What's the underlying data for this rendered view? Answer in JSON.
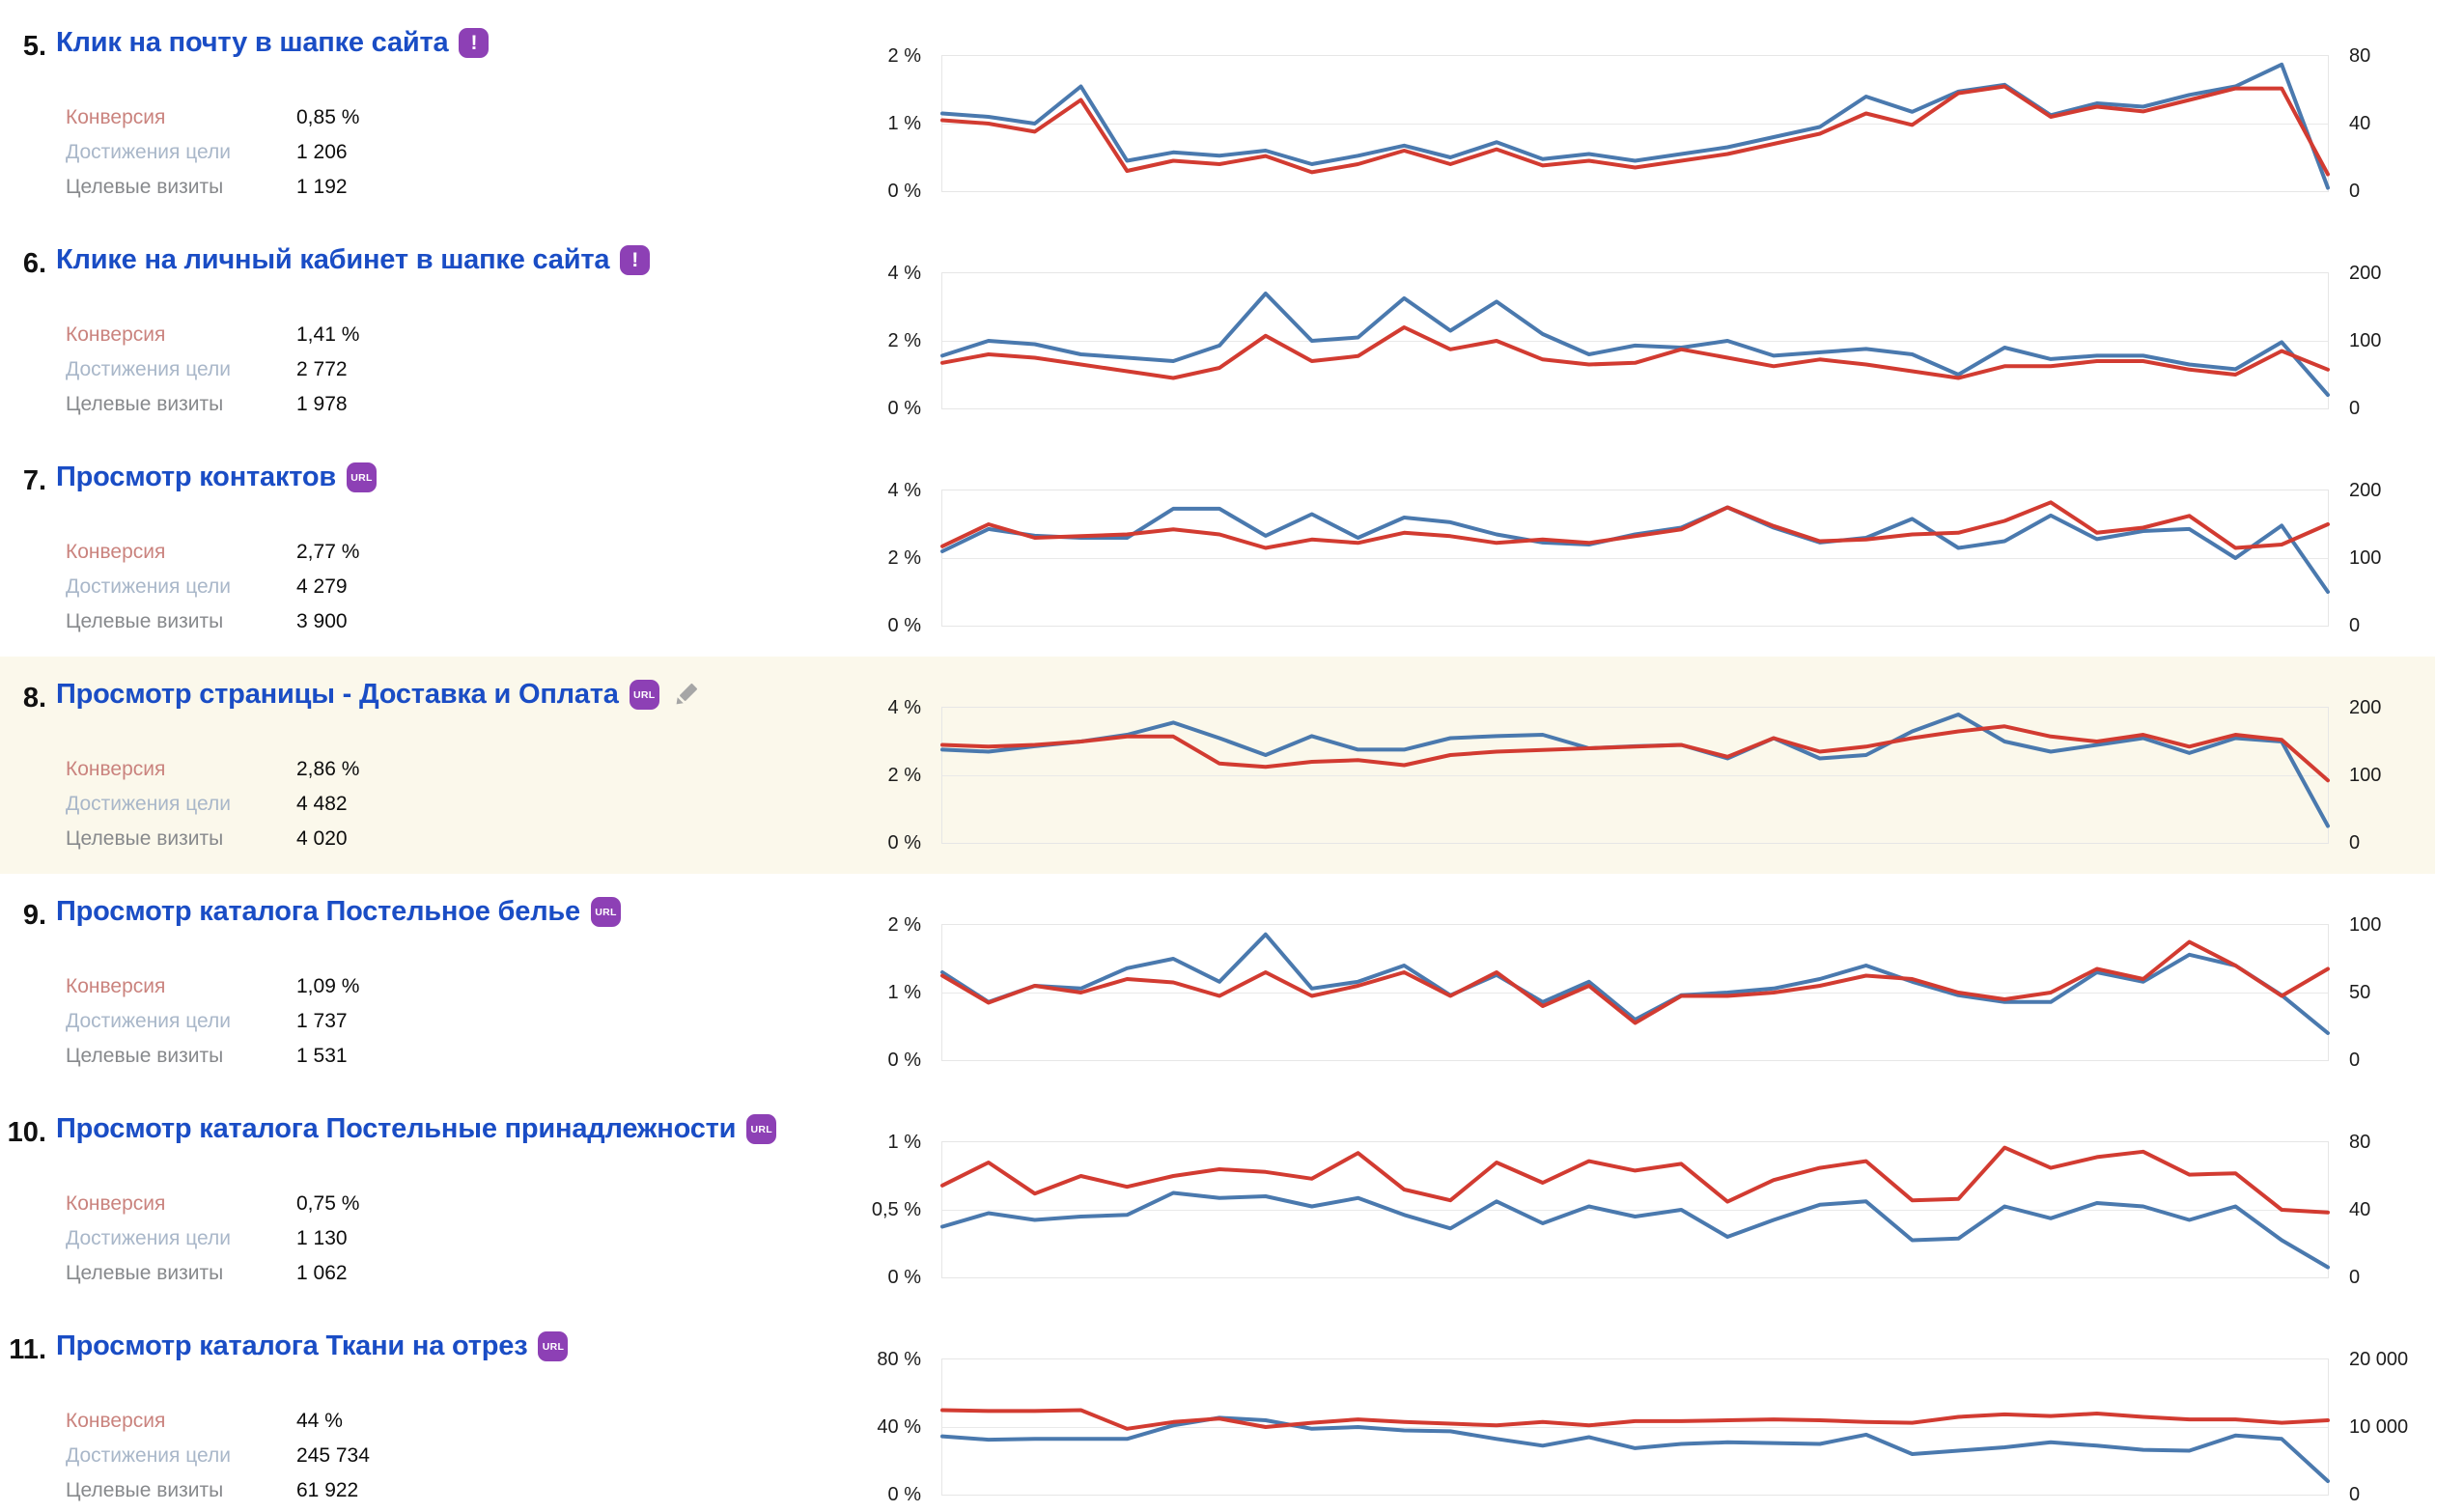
{
  "colors": {
    "title_link": "#1a4dc5",
    "conversion_label": "#ca837e",
    "reaches_label": "#a9b7c9",
    "visits_label": "#87898c",
    "value_text": "#0d0d0d",
    "badge_bg": "#8d40b5",
    "edit_icon": "#a6a6a6",
    "blue_line": "#4a79ae",
    "red_line": "#d23b31",
    "grid": "#e9e9e9",
    "highlight_bg": "#fbf8eb"
  },
  "stat_labels": {
    "conversion": "Конверсия",
    "goal_reaches": "Достижения цели",
    "goal_visits": "Целевые визиты"
  },
  "goals": [
    {
      "number": "5.",
      "title": "Клик на почту в шапке сайта",
      "badge_label": "!",
      "badge_type": "exclamation",
      "conversion": "0,85 %",
      "goal_reaches": "1 206",
      "goal_visits": "1 192",
      "highlighted": false
    },
    {
      "number": "6.",
      "title": "Клике на личный кабинет в шапке сайта",
      "badge_label": "!",
      "badge_type": "exclamation",
      "conversion": "1,41 %",
      "goal_reaches": "2 772",
      "goal_visits": "1 978",
      "highlighted": false
    },
    {
      "number": "7.",
      "title": "Просмотр контактов",
      "badge_label": "URL",
      "badge_type": "url",
      "conversion": "2,77 %",
      "goal_reaches": "4 279",
      "goal_visits": "3 900",
      "highlighted": false
    },
    {
      "number": "8.",
      "title": "Просмотр страницы - Доставка и Оплата",
      "badge_label": "URL",
      "badge_type": "url",
      "conversion": "2,86 %",
      "goal_reaches": "4 482",
      "goal_visits": "4 020",
      "highlighted": true,
      "has_edit_icon": true
    },
    {
      "number": "9.",
      "title": "Просмотр каталога Постельное белье",
      "badge_label": "URL",
      "badge_type": "url",
      "conversion": "1,09 %",
      "goal_reaches": "1 737",
      "goal_visits": "1 531",
      "highlighted": false
    },
    {
      "number": "10.",
      "title": "Просмотр каталога Постельные принадлежности",
      "badge_label": "URL",
      "badge_type": "url",
      "conversion": "0,75 %",
      "goal_reaches": "1 130",
      "goal_visits": "1 062",
      "highlighted": false
    },
    {
      "number": "11.",
      "title": "Просмотр каталога Ткани на отрез",
      "badge_label": "URL",
      "badge_type": "url",
      "conversion": "44 %",
      "goal_reaches": "245 734",
      "goal_visits": "61 922",
      "highlighted": false
    }
  ],
  "chart_data": [
    {
      "type": "line",
      "title": "Клик на почту в шапке сайта",
      "x": "days of period (31 points, x labels not shown)",
      "grid": "horizontal",
      "left_axis": {
        "max": 2,
        "ticks": [
          "2 %",
          "1 %",
          "0 %"
        ]
      },
      "right_axis": {
        "max": 80,
        "ticks": [
          "80",
          "40",
          "0"
        ]
      },
      "series": [
        {
          "name": "Достижения цели",
          "color": "blue",
          "axis": "right",
          "values": [
            46,
            44,
            40,
            62,
            18,
            23,
            21,
            24,
            16,
            21,
            27,
            20,
            29,
            19,
            22,
            18,
            22,
            26,
            32,
            38,
            56,
            47,
            59,
            63,
            45,
            52,
            50,
            57,
            62,
            75,
            2
          ]
        },
        {
          "name": "Конверсия",
          "color": "red",
          "axis": "left",
          "values": [
            1.05,
            1.0,
            0.88,
            1.35,
            0.3,
            0.45,
            0.4,
            0.52,
            0.28,
            0.4,
            0.6,
            0.4,
            0.62,
            0.38,
            0.45,
            0.35,
            0.45,
            0.55,
            0.7,
            0.85,
            1.15,
            0.98,
            1.45,
            1.55,
            1.1,
            1.25,
            1.18,
            1.35,
            1.52,
            1.52,
            0.25
          ]
        }
      ]
    },
    {
      "type": "line",
      "title": "Клике на личный кабинет в шапке сайта",
      "x": "days of period (31 points, x labels not shown)",
      "grid": "horizontal",
      "left_axis": {
        "max": 4,
        "ticks": [
          "4 %",
          "2 %",
          "0 %"
        ]
      },
      "right_axis": {
        "max": 200,
        "ticks": [
          "200",
          "100",
          "0"
        ]
      },
      "series": [
        {
          "name": "Достижения цели",
          "color": "blue",
          "axis": "right",
          "values": [
            78,
            100,
            95,
            80,
            75,
            70,
            93,
            170,
            100,
            105,
            163,
            115,
            158,
            110,
            80,
            93,
            90,
            100,
            78,
            83,
            88,
            80,
            50,
            90,
            73,
            78,
            78,
            65,
            58,
            98,
            20
          ]
        },
        {
          "name": "Конверсия",
          "color": "red",
          "axis": "left",
          "values": [
            1.35,
            1.6,
            1.5,
            1.3,
            1.1,
            0.9,
            1.2,
            2.15,
            1.4,
            1.55,
            2.4,
            1.75,
            2.0,
            1.45,
            1.3,
            1.35,
            1.75,
            1.5,
            1.25,
            1.45,
            1.3,
            1.1,
            0.9,
            1.25,
            1.25,
            1.4,
            1.4,
            1.15,
            1.0,
            1.7,
            1.15
          ]
        }
      ]
    },
    {
      "type": "line",
      "title": "Просмотр контактов",
      "x": "days of period (31 points, x labels not shown)",
      "grid": "horizontal",
      "left_axis": {
        "max": 4,
        "ticks": [
          "4 %",
          "2 %",
          "0 %"
        ]
      },
      "right_axis": {
        "max": 200,
        "ticks": [
          "200",
          "100",
          "0"
        ]
      },
      "series": [
        {
          "name": "Достижения цели",
          "color": "blue",
          "axis": "right",
          "values": [
            110,
            143,
            133,
            130,
            130,
            173,
            173,
            133,
            165,
            130,
            160,
            153,
            135,
            123,
            120,
            135,
            145,
            175,
            145,
            123,
            130,
            158,
            115,
            125,
            163,
            128,
            140,
            143,
            100,
            148,
            50
          ]
        },
        {
          "name": "Конверсия",
          "color": "red",
          "axis": "left",
          "values": [
            2.35,
            3.0,
            2.6,
            2.65,
            2.7,
            2.85,
            2.7,
            2.3,
            2.55,
            2.45,
            2.75,
            2.65,
            2.45,
            2.55,
            2.45,
            2.65,
            2.85,
            3.5,
            2.95,
            2.5,
            2.55,
            2.7,
            2.75,
            3.1,
            3.65,
            2.75,
            2.9,
            3.25,
            2.3,
            2.4,
            3.0
          ]
        }
      ]
    },
    {
      "type": "line",
      "title": "Просмотр страницы - Доставка и Оплата",
      "x": "days of period (31 points, x labels not shown)",
      "grid": "horizontal",
      "left_axis": {
        "max": 4,
        "ticks": [
          "4 %",
          "2 %",
          "0 %"
        ]
      },
      "right_axis": {
        "max": 200,
        "ticks": [
          "200",
          "100",
          "0"
        ]
      },
      "series": [
        {
          "name": "Достижения цели",
          "color": "blue",
          "axis": "right",
          "values": [
            138,
            135,
            143,
            150,
            160,
            178,
            155,
            130,
            158,
            138,
            138,
            155,
            158,
            160,
            140,
            143,
            145,
            125,
            155,
            125,
            130,
            165,
            190,
            150,
            135,
            145,
            155,
            133,
            155,
            150,
            25
          ]
        },
        {
          "name": "Конверсия",
          "color": "red",
          "axis": "left",
          "values": [
            2.9,
            2.85,
            2.9,
            3.0,
            3.15,
            3.15,
            2.35,
            2.25,
            2.4,
            2.45,
            2.3,
            2.6,
            2.7,
            2.75,
            2.8,
            2.85,
            2.9,
            2.55,
            3.1,
            2.7,
            2.85,
            3.1,
            3.3,
            3.45,
            3.15,
            3.0,
            3.2,
            2.85,
            3.2,
            3.05,
            1.85
          ]
        }
      ]
    },
    {
      "type": "line",
      "title": "Просмотр каталога Постельное белье",
      "x": "days of period (31 points, x labels not shown)",
      "grid": "horizontal",
      "left_axis": {
        "max": 2,
        "ticks": [
          "2 %",
          "1 %",
          "0 %"
        ]
      },
      "right_axis": {
        "max": 100,
        "ticks": [
          "100",
          "50",
          "0"
        ]
      },
      "series": [
        {
          "name": "Достижения цели",
          "color": "blue",
          "axis": "right",
          "values": [
            65,
            43,
            55,
            53,
            68,
            75,
            58,
            93,
            53,
            58,
            70,
            48,
            63,
            43,
            58,
            30,
            48,
            50,
            53,
            60,
            70,
            58,
            48,
            43,
            43,
            65,
            58,
            78,
            70,
            48,
            20
          ]
        },
        {
          "name": "Конверсия",
          "color": "red",
          "axis": "left",
          "values": [
            1.25,
            0.85,
            1.1,
            1.0,
            1.2,
            1.15,
            0.95,
            1.3,
            0.95,
            1.1,
            1.3,
            0.95,
            1.3,
            0.8,
            1.1,
            0.55,
            0.95,
            0.95,
            1.0,
            1.1,
            1.25,
            1.2,
            1.0,
            0.9,
            1.0,
            1.35,
            1.2,
            1.75,
            1.4,
            0.95,
            1.35
          ]
        }
      ]
    },
    {
      "type": "line",
      "title": "Просмотр каталога Постельные принадлежности",
      "x": "days of period (31 points, x labels not shown)",
      "grid": "horizontal",
      "left_axis": {
        "max": 1,
        "ticks": [
          "1 %",
          "0,5 %",
          "0 %"
        ]
      },
      "right_axis": {
        "max": 80,
        "ticks": [
          "80",
          "40",
          "0"
        ]
      },
      "series": [
        {
          "name": "Достижения цели",
          "color": "blue",
          "axis": "right",
          "values": [
            30,
            38,
            34,
            36,
            37,
            50,
            47,
            48,
            42,
            47,
            37,
            29,
            45,
            32,
            42,
            36,
            40,
            24,
            34,
            43,
            45,
            22,
            23,
            42,
            35,
            44,
            42,
            34,
            42,
            22,
            6
          ]
        },
        {
          "name": "Конверсия",
          "color": "red",
          "axis": "left",
          "values": [
            0.68,
            0.85,
            0.62,
            0.75,
            0.67,
            0.75,
            0.8,
            0.78,
            0.73,
            0.92,
            0.65,
            0.57,
            0.85,
            0.7,
            0.86,
            0.79,
            0.84,
            0.56,
            0.72,
            0.81,
            0.86,
            0.57,
            0.58,
            0.96,
            0.81,
            0.89,
            0.93,
            0.76,
            0.77,
            0.5,
            0.48
          ]
        }
      ]
    },
    {
      "type": "line",
      "title": "Просмотр каталога Ткани на отрез",
      "x": "days of period (31 points, x labels not shown)",
      "grid": "horizontal",
      "left_axis": {
        "max": 80,
        "ticks": [
          "80 %",
          "40 %",
          "0 %"
        ]
      },
      "right_axis": {
        "max": 20000,
        "ticks": [
          "20 000",
          "10 000",
          "0"
        ]
      },
      "series": [
        {
          "name": "Достижения цели",
          "color": "blue",
          "axis": "right",
          "values": [
            8625,
            8125,
            8250,
            8250,
            8250,
            10250,
            11375,
            11000,
            9750,
            10000,
            9500,
            9375,
            8250,
            7250,
            8500,
            6875,
            7500,
            7750,
            7625,
            7500,
            8875,
            6000,
            6500,
            7000,
            7750,
            7250,
            6625,
            6500,
            8750,
            8250,
            2000
          ]
        },
        {
          "name": "Конверсия",
          "color": "red",
          "axis": "left",
          "values": [
            50,
            49.5,
            49.5,
            50,
            39,
            43,
            45,
            40,
            42.5,
            44.5,
            43,
            42,
            41,
            43,
            41,
            43.5,
            43.5,
            44,
            44.5,
            44,
            43,
            42.5,
            46,
            47.5,
            46.5,
            48,
            46,
            44.5,
            44.5,
            42.5,
            44
          ]
        }
      ]
    }
  ]
}
